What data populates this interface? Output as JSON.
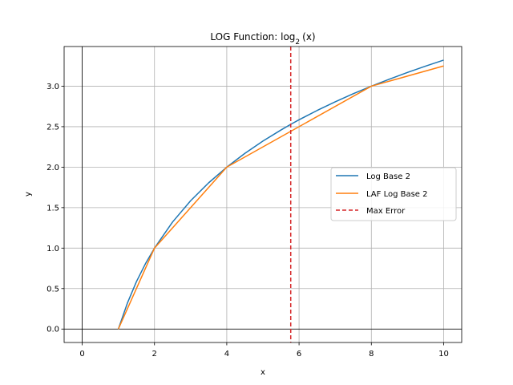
{
  "chart_data": {
    "type": "line",
    "title_main": "LOG Function: log",
    "title_sub": "2",
    "title_arg": "(x)",
    "xlabel": "x",
    "ylabel": "y",
    "xlim": [
      -0.5,
      10.5
    ],
    "ylim": [
      -0.166,
      3.49
    ],
    "xticks": [
      0,
      2,
      4,
      6,
      8,
      10
    ],
    "xtick_labels": [
      "0",
      "2",
      "4",
      "6",
      "8",
      "10"
    ],
    "yticks": [
      0.0,
      0.5,
      1.0,
      1.5,
      2.0,
      2.5,
      3.0
    ],
    "ytick_labels": [
      "0.0",
      "0.5",
      "1.0",
      "1.5",
      "2.0",
      "2.5",
      "3.0"
    ],
    "grid": true,
    "legend_position": "center-right",
    "series": [
      {
        "name": "Log Base 2",
        "color": "#1f77b4",
        "style": "solid",
        "x": [
          1,
          1.25,
          1.5,
          1.75,
          2,
          2.5,
          3,
          3.5,
          4,
          4.5,
          5,
          5.5,
          5.77,
          6,
          6.5,
          7,
          7.5,
          8,
          8.5,
          9,
          9.5,
          10
        ],
        "y": [
          0,
          0.32,
          0.585,
          0.807,
          1,
          1.322,
          1.585,
          1.807,
          2,
          2.17,
          2.322,
          2.459,
          2.529,
          2.585,
          2.7,
          2.807,
          2.907,
          3,
          3.087,
          3.17,
          3.248,
          3.322
        ]
      },
      {
        "name": "LAF Log Base 2",
        "color": "#ff7f0e",
        "style": "solid",
        "x": [
          1,
          2,
          4,
          8,
          10
        ],
        "y": [
          0,
          1,
          2,
          3,
          3.25
        ]
      }
    ],
    "vlines": [
      {
        "name": "Max Error",
        "color": "#d62728",
        "style": "dashed",
        "x": 5.77
      }
    ]
  }
}
